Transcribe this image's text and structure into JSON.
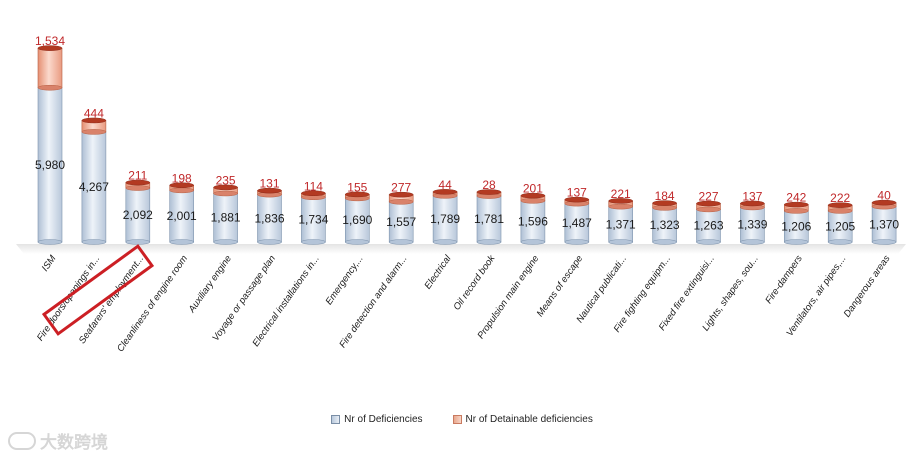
{
  "chart_data": {
    "type": "bar",
    "categories": [
      "ISM",
      "Fire doors/openings in...",
      "Seafarers' employment...",
      "Cleanliness of engine room",
      "Auxiliary engine",
      "Voyage or passage plan",
      "Electrical installations in...",
      "Emergency,...",
      "Fire detection and alarm...",
      "Electrical",
      "Oil record book",
      "Propulsion main engine",
      "Means of escape",
      "Nautical publicati...",
      "Fire fighting equipm...",
      "Fixed fire extinguisi...",
      "Lights, shapes, sou...",
      "Fire-dampers",
      "Ventilators, air pipes,...",
      "Dangerous areas"
    ],
    "series": [
      {
        "name": "Nr of Deficiencies",
        "values": [
          5980,
          4267,
          2092,
          2001,
          1881,
          1836,
          1734,
          1690,
          1557,
          1789,
          1781,
          1596,
          1487,
          1371,
          1323,
          1263,
          1339,
          1206,
          1205,
          1370
        ],
        "labels": [
          "5,980",
          "4,267",
          "2,092",
          "2,001",
          "1,881",
          "1,836",
          "1,734",
          "1,690",
          "1,557",
          "1,789",
          "1,781",
          "1,596",
          "1,487",
          "1,371",
          "1,323",
          "1,263",
          "1,339",
          "1,206",
          "1,205",
          "1,370"
        ]
      },
      {
        "name": "Nr of Detainable deficiencies",
        "values": [
          1534,
          444,
          211,
          198,
          235,
          131,
          114,
          155,
          277,
          44,
          28,
          201,
          137,
          221,
          184,
          227,
          137,
          242,
          222,
          40
        ],
        "labels": [
          "1,534",
          "444",
          "211",
          "198",
          "235",
          "131",
          "114",
          "155",
          "277",
          "44",
          "28",
          "201",
          "137",
          "221",
          "184",
          "227",
          "137",
          "242",
          "222",
          "40"
        ]
      }
    ],
    "stacked": true,
    "highlighted_category": "Seafarers' employment...",
    "colors": {
      "deficiencies": "#c9d6e6",
      "detainable": "#ef9c80",
      "detainable_label": "#c0282a"
    },
    "title": "",
    "xlabel": "",
    "ylabel": ""
  },
  "legend": {
    "deficiencies": "Nr of Deficiencies",
    "detainable": "Nr of Detainable deficiencies"
  },
  "watermark": {
    "text": "大数跨境"
  }
}
